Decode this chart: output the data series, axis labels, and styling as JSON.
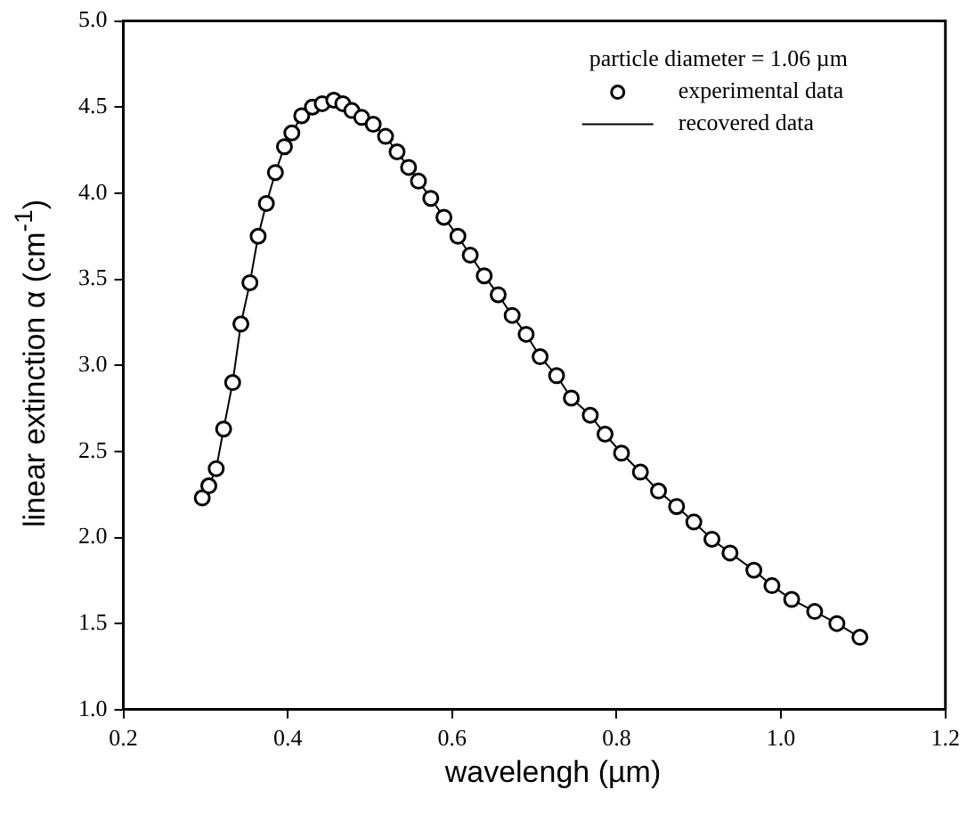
{
  "chart_data": {
    "type": "scatter",
    "xlabel": "wavelengh (µm)",
    "ylabel": "linear extinction  α (cm$^{-1}$)",
    "legend_title": "particle diameter = 1.06 µm",
    "legend": "top right",
    "xlim": [
      0.2,
      1.2
    ],
    "xticks": [
      0.2,
      0.4,
      0.6,
      0.8,
      {
        "value": 1,
        "label": "1.0"
      },
      1.2
    ],
    "ylim": [
      1,
      5
    ],
    "yticks": [
      {
        "value": 1,
        "label": "1.0"
      },
      1.5,
      {
        "value": 2,
        "label": "2.0"
      },
      2.5,
      {
        "value": 3,
        "label": "3.0"
      },
      3.5,
      {
        "value": 4,
        "label": "4.0"
      },
      4.5,
      {
        "value": 5,
        "label": "5.0"
      }
    ],
    "grid": false,
    "series": [
      {
        "name": "experimental data",
        "type": "scatter",
        "marker": "circle",
        "color": "#000000",
        "x": [
          0.296,
          0.304,
          0.313,
          0.322,
          0.333,
          0.343,
          0.354,
          0.364,
          0.374,
          0.385,
          0.396,
          0.405,
          0.417,
          0.43,
          0.442,
          0.456,
          0.467,
          0.478,
          0.49,
          0.504,
          0.519,
          0.533,
          0.547,
          0.559,
          0.574,
          0.59,
          0.607,
          0.622,
          0.639,
          0.656,
          0.673,
          0.69,
          0.707,
          0.727,
          0.745,
          0.768,
          0.786,
          0.806,
          0.829,
          0.851,
          0.873,
          0.894,
          0.916,
          0.938,
          0.967,
          0.989,
          1.013,
          1.041,
          1.068,
          1.096
        ],
        "values": [
          2.23,
          2.3,
          2.4,
          2.63,
          2.9,
          3.24,
          3.48,
          3.75,
          3.94,
          4.12,
          4.27,
          4.35,
          4.45,
          4.5,
          4.52,
          4.54,
          4.52,
          4.48,
          4.44,
          4.4,
          4.33,
          4.24,
          4.15,
          4.07,
          3.97,
          3.86,
          3.75,
          3.64,
          3.52,
          3.41,
          3.29,
          3.18,
          3.05,
          2.94,
          2.81,
          2.71,
          2.6,
          2.49,
          2.38,
          2.27,
          2.18,
          2.09,
          1.99,
          1.91,
          1.81,
          1.72,
          1.64,
          1.57,
          1.5,
          1.42
        ]
      },
      {
        "name": "recovered data",
        "type": "line",
        "marker": "none",
        "line_style": "solid",
        "color": "#000000",
        "x": [
          0.296,
          0.304,
          0.313,
          0.322,
          0.333,
          0.343,
          0.354,
          0.364,
          0.374,
          0.385,
          0.396,
          0.405,
          0.417,
          0.43,
          0.442,
          0.456,
          0.467,
          0.478,
          0.49,
          0.504,
          0.519,
          0.533,
          0.547,
          0.559,
          0.574,
          0.59,
          0.607,
          0.622,
          0.639,
          0.656,
          0.673,
          0.69,
          0.707,
          0.727,
          0.745,
          0.768,
          0.786,
          0.806,
          0.829,
          0.851,
          0.873,
          0.894,
          0.916,
          0.938,
          0.967,
          0.989,
          1.013,
          1.041,
          1.068,
          1.096
        ],
        "values": [
          2.23,
          2.3,
          2.4,
          2.63,
          2.9,
          3.24,
          3.48,
          3.75,
          3.94,
          4.12,
          4.27,
          4.35,
          4.45,
          4.5,
          4.52,
          4.54,
          4.52,
          4.48,
          4.44,
          4.4,
          4.33,
          4.24,
          4.15,
          4.07,
          3.97,
          3.86,
          3.75,
          3.64,
          3.52,
          3.41,
          3.29,
          3.18,
          3.05,
          2.94,
          2.81,
          2.71,
          2.6,
          2.49,
          2.38,
          2.27,
          2.18,
          2.09,
          1.99,
          1.91,
          1.81,
          1.72,
          1.64,
          1.57,
          1.5,
          1.42
        ]
      }
    ]
  }
}
